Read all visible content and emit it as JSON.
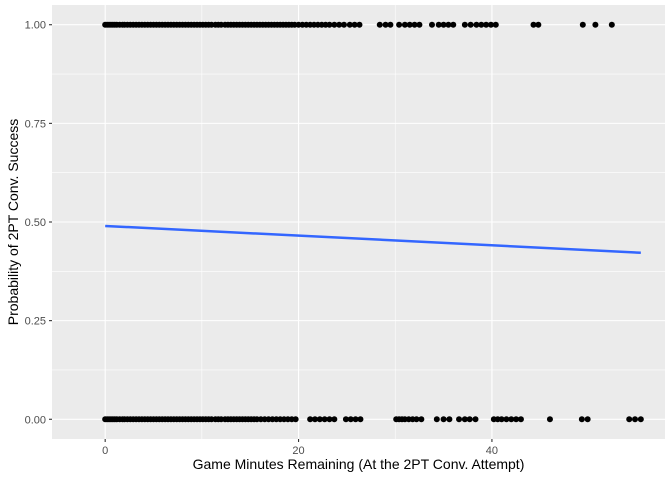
{
  "chart_data": {
    "type": "scatter",
    "title": "",
    "xlabel": "Game Minutes Remaining (At the 2PT Conv. Attempt)",
    "ylabel": "Probability of 2PT Conv. Success",
    "xlim": [
      -5.5,
      57.9
    ],
    "ylim": [
      -0.05,
      1.05
    ],
    "x_ticks": [
      0,
      20,
      40
    ],
    "x_tick_labels": [
      "0",
      "20",
      "40"
    ],
    "y_ticks": [
      0,
      0.25,
      0.5,
      0.75,
      1
    ],
    "y_tick_labels": [
      "0.00",
      "0.25",
      "0.50",
      "0.75",
      "1.00"
    ],
    "grid": true,
    "legend": "none",
    "colors": {
      "panel": "#ebebeb",
      "grid_major": "#ffffff",
      "points": "#000000",
      "fit_line": "#3366ff"
    },
    "series": [
      {
        "kind": "points",
        "y": 1,
        "x": [
          0.0,
          0.2,
          0.4,
          0.6,
          0.8,
          1.0,
          1.2,
          1.5,
          1.8,
          2.0,
          2.3,
          2.6,
          2.9,
          3.2,
          3.5,
          3.8,
          4.1,
          4.4,
          4.7,
          5.0,
          5.3,
          5.6,
          5.9,
          6.2,
          6.5,
          6.8,
          7.1,
          7.4,
          7.7,
          8.0,
          8.3,
          8.6,
          8.9,
          9.2,
          9.5,
          9.8,
          10.1,
          10.4,
          10.7,
          11.0,
          11.4,
          11.7,
          12.0,
          12.4,
          12.7,
          13.0,
          13.3,
          13.6,
          13.9,
          14.2,
          14.5,
          14.8,
          15.1,
          15.4,
          15.7,
          16.0,
          16.3,
          16.6,
          16.9,
          17.2,
          17.5,
          17.8,
          18.1,
          18.4,
          18.7,
          19.0,
          19.3,
          19.6,
          20.0,
          20.4,
          20.8,
          21.2,
          21.6,
          22.0,
          22.4,
          22.8,
          23.2,
          23.7,
          24.2,
          24.7,
          25.3,
          25.8,
          26.3,
          28.4,
          29.0,
          29.5,
          30.4,
          31.0,
          31.5,
          32.0,
          32.5,
          33.8,
          34.5,
          35.0,
          35.5,
          36.0,
          37.2,
          37.8,
          38.4,
          38.9,
          39.4,
          39.9,
          40.4,
          44.3,
          44.8,
          49.4,
          50.7,
          52.4
        ]
      },
      {
        "kind": "points",
        "y": 0,
        "x": [
          0.0,
          0.2,
          0.4,
          0.6,
          0.8,
          1.0,
          1.2,
          1.5,
          1.8,
          2.0,
          2.3,
          2.6,
          2.9,
          3.2,
          3.5,
          3.8,
          4.1,
          4.4,
          4.7,
          5.0,
          5.3,
          5.6,
          5.9,
          6.2,
          6.5,
          6.8,
          7.1,
          7.4,
          7.7,
          8.0,
          8.3,
          8.6,
          8.9,
          9.2,
          9.5,
          9.8,
          10.1,
          10.4,
          10.7,
          11.0,
          11.4,
          11.7,
          12.0,
          12.4,
          12.7,
          13.0,
          13.3,
          13.6,
          13.9,
          14.2,
          14.5,
          14.8,
          15.1,
          15.4,
          15.7,
          16.1,
          16.5,
          16.9,
          17.3,
          17.7,
          18.1,
          18.5,
          18.9,
          19.3,
          19.7,
          21.2,
          21.7,
          22.2,
          22.7,
          23.2,
          23.7,
          24.9,
          25.4,
          25.9,
          26.4,
          30.1,
          30.4,
          30.7,
          31.0,
          31.4,
          31.8,
          32.2,
          32.7,
          34.3,
          35.0,
          35.6,
          36.6,
          37.2,
          37.7,
          38.3,
          40.2,
          40.6,
          41.0,
          41.5,
          42.0,
          42.5,
          43.0,
          46.0,
          49.3,
          49.9,
          54.2,
          54.8,
          55.4
        ]
      },
      {
        "kind": "fit_line",
        "name": "",
        "x": [
          0,
          55.4
        ],
        "y": [
          0.49,
          0.422
        ]
      }
    ]
  }
}
